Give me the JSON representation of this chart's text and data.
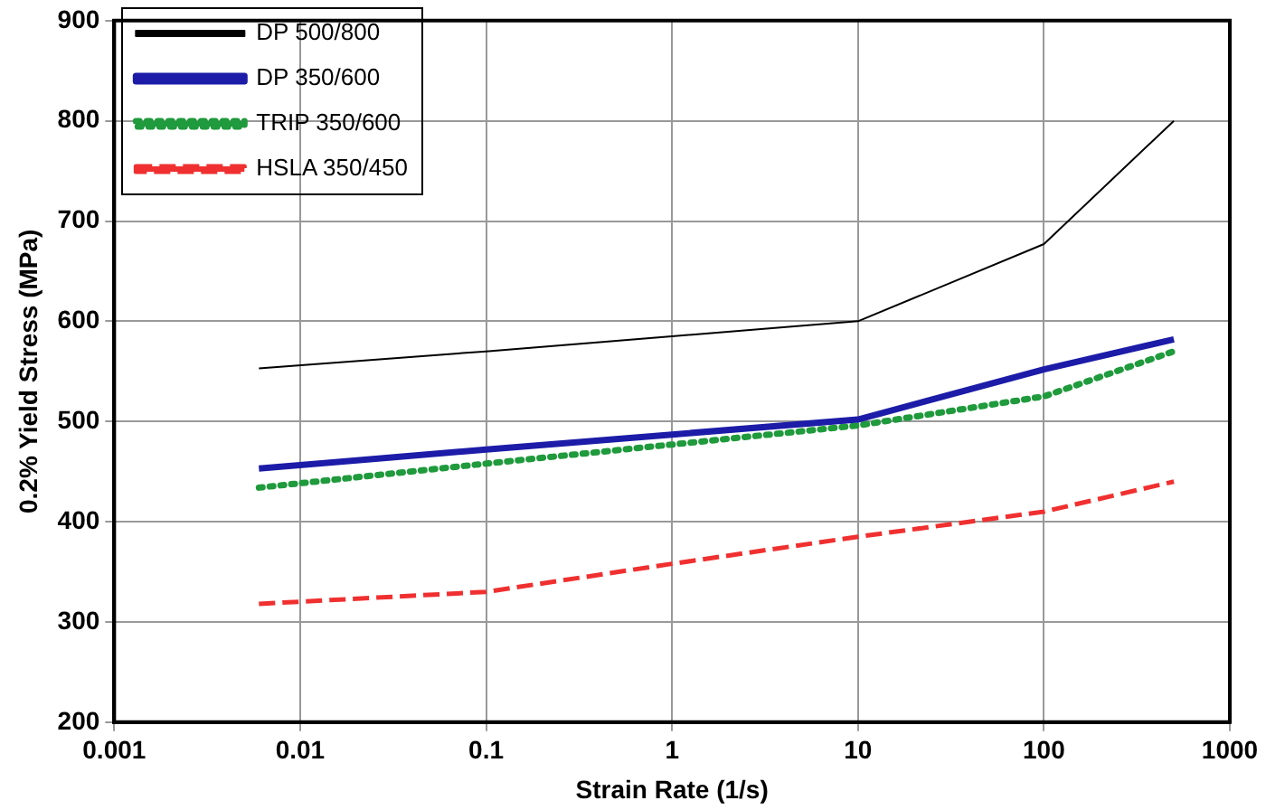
{
  "chart_data": {
    "type": "line",
    "xlabel": "Strain Rate (1/s)",
    "ylabel": "0.2% Yield Stress (MPa)",
    "log": "x",
    "x": [
      0.006,
      0.1,
      1,
      10,
      100,
      500
    ],
    "xlim": [
      0.001,
      1000
    ],
    "xticks": [
      0.001,
      0.01,
      0.1,
      1,
      10,
      100,
      1000
    ],
    "ylim": [
      200,
      900
    ],
    "yticks": [
      200,
      300,
      400,
      500,
      600,
      700,
      800,
      900
    ],
    "grid": true,
    "legend": "top left",
    "marker": "none",
    "series": [
      {
        "name": "DP 500/800",
        "color": "#000000",
        "line_style": "solid",
        "values": [
          553,
          570,
          585,
          600,
          677,
          800
        ]
      },
      {
        "name": "DP 350/600",
        "color": "#1c1ca8",
        "line_style": "solid",
        "values": [
          453,
          472,
          487,
          502,
          552,
          582
        ]
      },
      {
        "name": "TRIP 350/600",
        "color": "#1f9a3c",
        "line_style": "dotted",
        "values": [
          434,
          458,
          477,
          496,
          525,
          570
        ]
      },
      {
        "name": "HSLA 350/450",
        "color": "#f03030",
        "line_style": "dashed",
        "values": [
          318,
          330,
          358,
          385,
          410,
          440
        ]
      }
    ]
  }
}
